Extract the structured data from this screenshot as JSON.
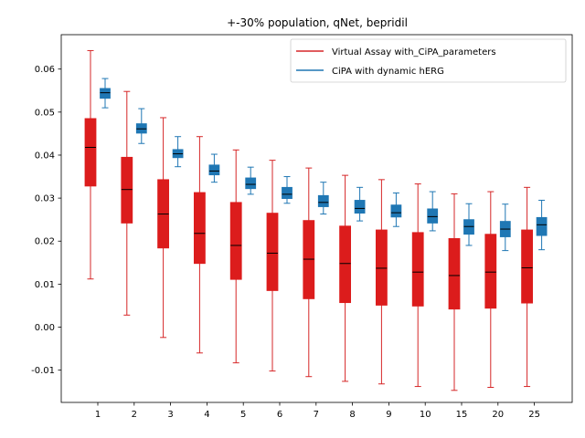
{
  "chart_data": {
    "type": "boxplot",
    "title": "+-30% population, qNet, bepridil",
    "xlabel": "",
    "ylabel": "",
    "categories": [
      "1",
      "2",
      "3",
      "4",
      "5",
      "6",
      "7",
      "8",
      "9",
      "10",
      "15",
      "20",
      "25"
    ],
    "ylim": [
      -0.0175,
      0.068
    ],
    "yticks": [
      -0.01,
      0.0,
      0.01,
      0.02,
      0.03,
      0.04,
      0.05,
      0.06
    ],
    "ytick_labels": [
      "-0.01",
      "0.00",
      "0.01",
      "0.02",
      "0.03",
      "0.04",
      "0.05",
      "0.06"
    ],
    "grid": false,
    "legend_position": "top-right",
    "series": [
      {
        "name": "Virtual Assay with_CiPA_parameters",
        "color": "#d62728",
        "fill": "#dc1c1c",
        "boxes": [
          {
            "min": 0.0112,
            "q1": 0.0328,
            "median": 0.0418,
            "q3": 0.0485,
            "max": 0.0643
          },
          {
            "min": 0.0028,
            "q1": 0.0242,
            "median": 0.032,
            "q3": 0.0395,
            "max": 0.0548
          },
          {
            "min": -0.0024,
            "q1": 0.0184,
            "median": 0.0263,
            "q3": 0.0343,
            "max": 0.0487
          },
          {
            "min": -0.006,
            "q1": 0.0148,
            "median": 0.0218,
            "q3": 0.0313,
            "max": 0.0443
          },
          {
            "min": -0.0083,
            "q1": 0.0111,
            "median": 0.019,
            "q3": 0.029,
            "max": 0.0412
          },
          {
            "min": -0.0102,
            "q1": 0.0085,
            "median": 0.0172,
            "q3": 0.0265,
            "max": 0.0388
          },
          {
            "min": -0.0115,
            "q1": 0.0066,
            "median": 0.0158,
            "q3": 0.0248,
            "max": 0.037
          },
          {
            "min": -0.0126,
            "q1": 0.0057,
            "median": 0.0148,
            "q3": 0.0235,
            "max": 0.0353
          },
          {
            "min": -0.0132,
            "q1": 0.0051,
            "median": 0.0137,
            "q3": 0.0226,
            "max": 0.0343
          },
          {
            "min": -0.0138,
            "q1": 0.0049,
            "median": 0.0128,
            "q3": 0.022,
            "max": 0.0333
          },
          {
            "min": -0.0147,
            "q1": 0.0042,
            "median": 0.012,
            "q3": 0.0206,
            "max": 0.031
          },
          {
            "min": -0.014,
            "q1": 0.0044,
            "median": 0.0128,
            "q3": 0.0216,
            "max": 0.0315
          },
          {
            "min": -0.0138,
            "q1": 0.0056,
            "median": 0.0138,
            "q3": 0.0226,
            "max": 0.0325
          }
        ]
      },
      {
        "name": "CiPA with dynamic hERG",
        "color": "#1f77b4",
        "fill": "#1f77b4",
        "boxes": [
          {
            "min": 0.051,
            "q1": 0.0532,
            "median": 0.0545,
            "q3": 0.0555,
            "max": 0.0578
          },
          {
            "min": 0.0427,
            "q1": 0.0451,
            "median": 0.0461,
            "q3": 0.0473,
            "max": 0.0508
          },
          {
            "min": 0.0373,
            "q1": 0.0394,
            "median": 0.0403,
            "q3": 0.0413,
            "max": 0.0443
          },
          {
            "min": 0.0337,
            "q1": 0.0354,
            "median": 0.0363,
            "q3": 0.0377,
            "max": 0.0402
          },
          {
            "min": 0.0309,
            "q1": 0.0322,
            "median": 0.0332,
            "q3": 0.0347,
            "max": 0.0372
          },
          {
            "min": 0.0288,
            "q1": 0.0299,
            "median": 0.0309,
            "q3": 0.0325,
            "max": 0.035
          },
          {
            "min": 0.0263,
            "q1": 0.028,
            "median": 0.029,
            "q3": 0.0306,
            "max": 0.0337
          },
          {
            "min": 0.0247,
            "q1": 0.0265,
            "median": 0.0276,
            "q3": 0.0295,
            "max": 0.0325
          },
          {
            "min": 0.0234,
            "q1": 0.0256,
            "median": 0.0266,
            "q3": 0.0284,
            "max": 0.0312
          },
          {
            "min": 0.0224,
            "q1": 0.0242,
            "median": 0.0257,
            "q3": 0.0275,
            "max": 0.0315
          },
          {
            "min": 0.019,
            "q1": 0.0216,
            "median": 0.0234,
            "q3": 0.025,
            "max": 0.0287
          },
          {
            "min": 0.0178,
            "q1": 0.021,
            "median": 0.0228,
            "q3": 0.0246,
            "max": 0.0286
          },
          {
            "min": 0.018,
            "q1": 0.0213,
            "median": 0.0238,
            "q3": 0.0255,
            "max": 0.0295
          }
        ]
      }
    ]
  }
}
